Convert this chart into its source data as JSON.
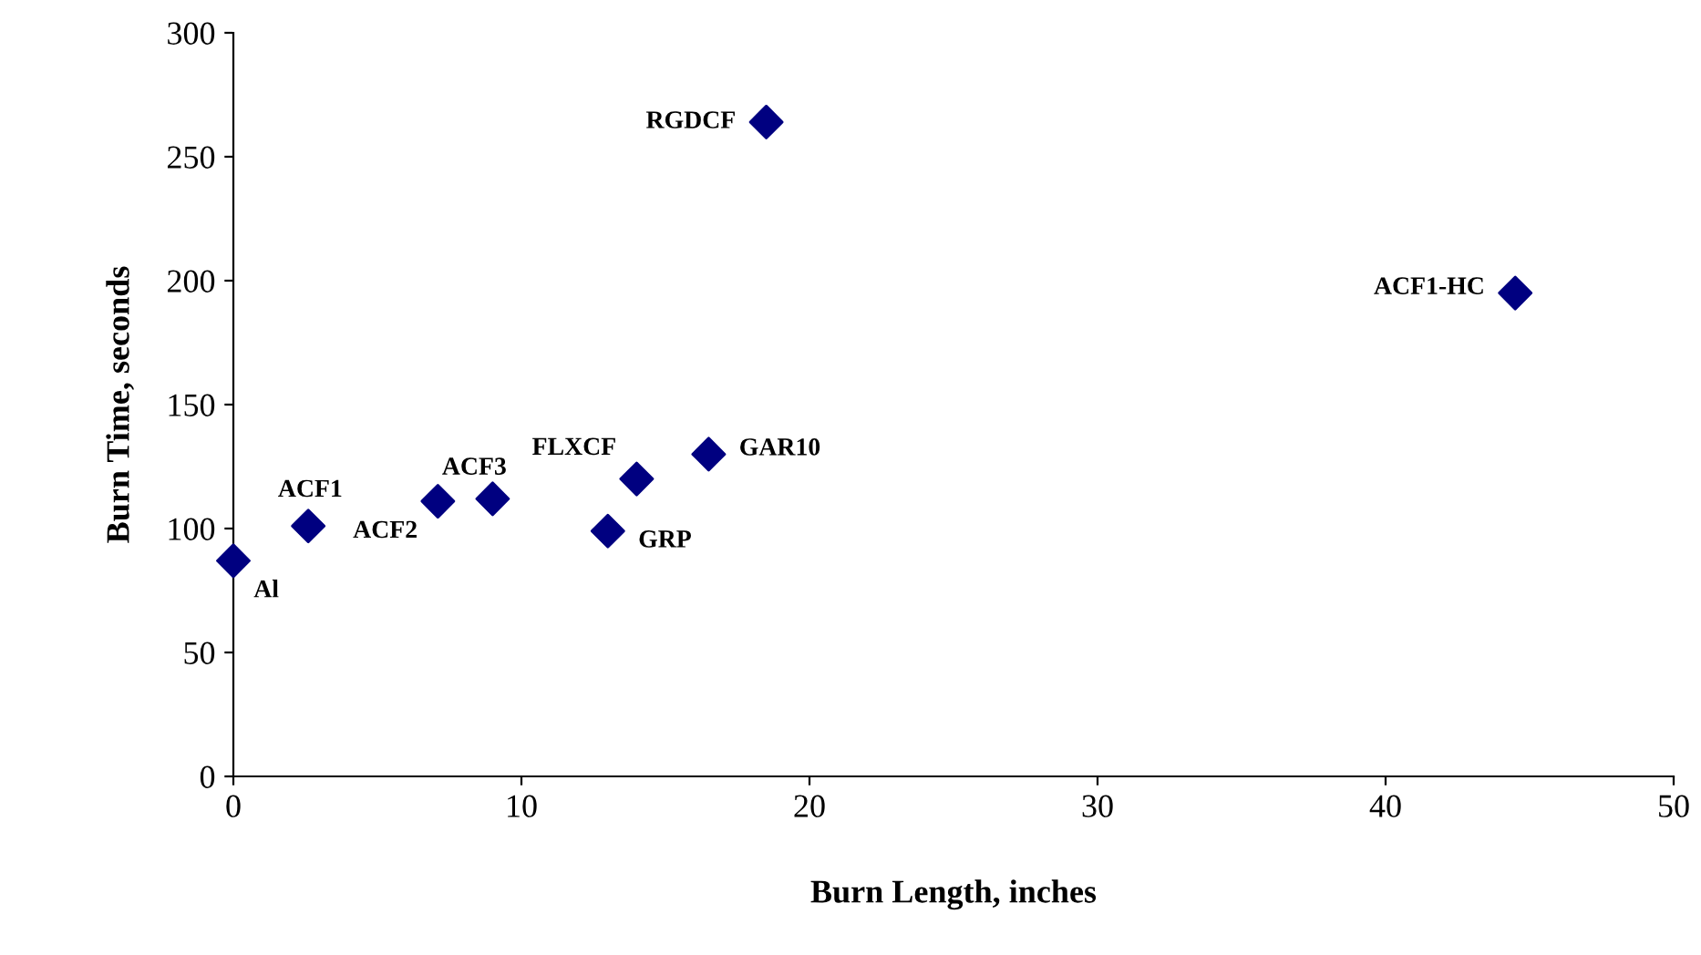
{
  "chart_data": {
    "type": "scatter",
    "xlabel": "Burn Length, inches",
    "ylabel": "Burn Time, seconds",
    "x": [
      0,
      2.6,
      7.1,
      9.0,
      13.0,
      14.0,
      16.5,
      18.5,
      44.5
    ],
    "series": [
      {
        "color": "#000080",
        "values": [
          87,
          101,
          111,
          112,
          99,
          120,
          130,
          264,
          195
        ]
      }
    ],
    "annotations": [
      {
        "text": "Al",
        "x": 0,
        "y": 87
      },
      {
        "text": "ACF1",
        "x": 2.6,
        "y": 101
      },
      {
        "text": "ACF2",
        "x": 7.1,
        "y": 111
      },
      {
        "text": "ACF3",
        "x": 9.0,
        "y": 112
      },
      {
        "text": "GRP",
        "x": 13.0,
        "y": 99
      },
      {
        "text": "FLXCF",
        "x": 14.0,
        "y": 120
      },
      {
        "text": "GAR10",
        "x": 16.5,
        "y": 130
      },
      {
        "text": "RGDCF",
        "x": 18.5,
        "y": 264
      },
      {
        "text": "ACF1-HC",
        "x": 44.5,
        "y": 195
      }
    ],
    "xlim": [
      0,
      50
    ],
    "xticks": [
      0,
      10,
      20,
      30,
      40,
      50
    ],
    "ylim": [
      0,
      300
    ],
    "yticks": [
      0,
      50,
      100,
      150,
      200,
      250,
      300
    ],
    "marker": "diamond",
    "grid": false,
    "legend": false
  }
}
